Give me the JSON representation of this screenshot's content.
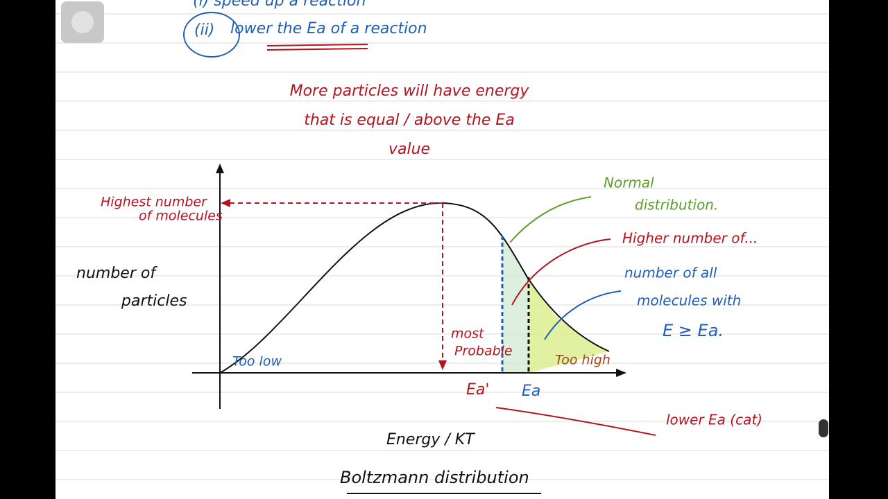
{
  "notes": {
    "line_1": "(i) speed up a reaction",
    "line_2_label": "(ii)",
    "line_2": "lower the Ea of a reaction",
    "statement": [
      "More particles will have energy",
      "that is equal / above the Ea",
      "value"
    ]
  },
  "graph": {
    "y_axis_label": [
      "number of",
      "particles"
    ],
    "x_axis_label": "Energy / KT",
    "peak_label": [
      "Highest number",
      "of molecules"
    ],
    "mode_label": [
      "most",
      "Probable"
    ],
    "low_label": "Too low",
    "high_label": "Too high",
    "ea_cat_label": "Ea'",
    "ea_label": "Ea",
    "curve_note": [
      "Normal",
      "distribution."
    ],
    "higher_note": "Higher number of...",
    "area_note": [
      "number of all",
      "molecules with",
      "E ≥ Ea."
    ],
    "catalyst_note": "lower Ea (cat)"
  },
  "title": "Boltzmann distribution"
}
